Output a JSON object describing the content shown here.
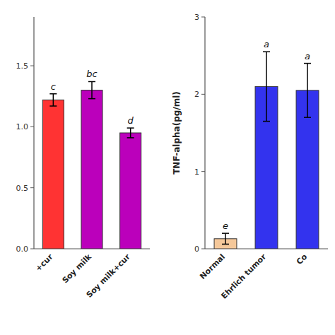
{
  "chart_data": [
    {
      "type": "bar",
      "categories": [
        "+cur",
        "Soy milk",
        "Soy milk+cur"
      ],
      "values": [
        1.22,
        1.3,
        0.95
      ],
      "errors": [
        0.05,
        0.07,
        0.04
      ],
      "colors": [
        "#FF3333",
        "#BB00BB",
        "#BB00BB"
      ],
      "annotations": [
        "c",
        "bc",
        "d"
      ],
      "ylim": [
        0,
        1.9
      ],
      "yticks": [
        {
          "value": 0.0,
          "label": "0.0"
        },
        0.5,
        {
          "value": 1.0,
          "label": "1.0"
        },
        1.5
      ],
      "grid": false
    },
    {
      "type": "bar",
      "categories": [
        "Normal",
        "Ehrlich tumor",
        "Co"
      ],
      "values": [
        0.13,
        2.1,
        2.05
      ],
      "errors": [
        0.07,
        0.45,
        0.35
      ],
      "colors": [
        "#F5C89A",
        "#3333EE",
        "#3333EE"
      ],
      "annotations": [
        "e",
        "a",
        "a"
      ],
      "y_label": "TNF-alpha(pg/ml)",
      "ylim": [
        0,
        3.0
      ],
      "yticks": [
        0,
        1,
        2,
        3
      ],
      "grid": false
    }
  ]
}
